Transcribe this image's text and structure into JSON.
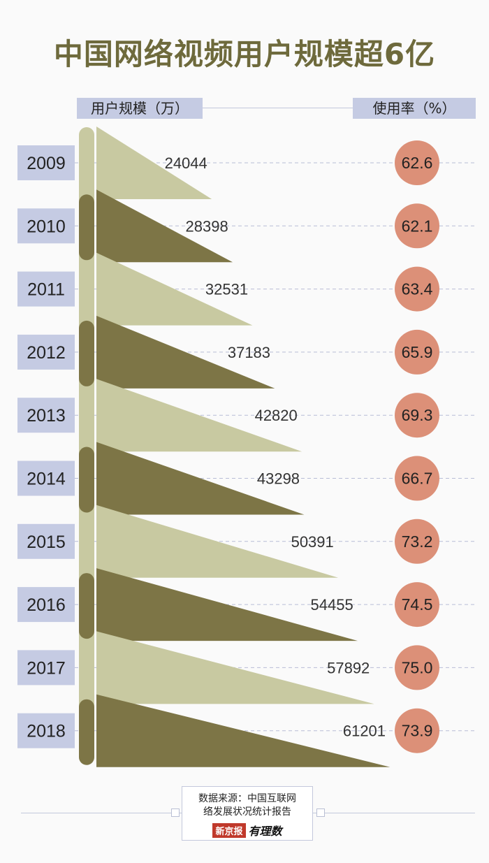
{
  "title": "中国网络视频用户规模超6亿",
  "headers": {
    "left": "用户规模（万）",
    "right": "使用率（%）"
  },
  "source": {
    "line1": "数据来源：中国互联网",
    "line2": "络发展状况统计报告",
    "logo_red": "新京报",
    "logo_ink": "有理数"
  },
  "colors": {
    "light": "#c8c9a1",
    "dark": "#7d7546",
    "year_box": "#c5cbe3",
    "circle": "#dc9078",
    "grid": "#b8bdd6"
  },
  "chart_data": {
    "type": "bar",
    "categories": [
      "2009",
      "2010",
      "2011",
      "2012",
      "2013",
      "2014",
      "2015",
      "2016",
      "2017",
      "2018"
    ],
    "series": [
      {
        "name": "用户规模（万）",
        "values": [
          24044,
          28398,
          32531,
          37183,
          42820,
          43298,
          50391,
          54455,
          57892,
          61201
        ]
      },
      {
        "name": "使用率（%）",
        "values": [
          62.6,
          62.1,
          63.4,
          65.9,
          69.3,
          66.7,
          73.2,
          74.5,
          75.0,
          73.9
        ]
      }
    ]
  }
}
